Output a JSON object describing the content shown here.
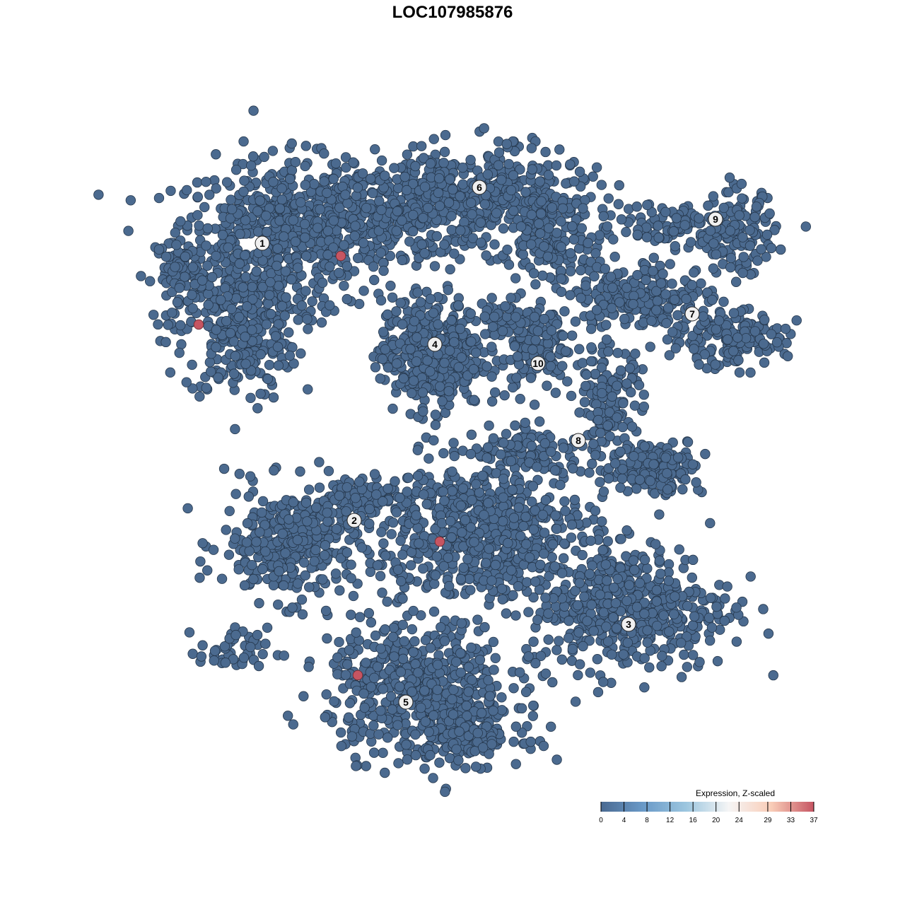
{
  "chart_data": {
    "type": "scatter",
    "title": "LOC107985876",
    "xlabel": "",
    "ylabel": "",
    "grid": false,
    "point_color": "#4b6a8f",
    "point_outline": "#26384d",
    "clusters": [
      {
        "label": "1",
        "x": -26.9,
        "y": 29.6,
        "blobs": [
          {
            "x": -25,
            "y": 30,
            "sx": 9,
            "sy": 7,
            "n": 520
          },
          {
            "x": -30,
            "y": 17,
            "sx": 5,
            "sy": 6,
            "n": 260
          },
          {
            "x": -12,
            "y": 33,
            "sx": 8,
            "sy": 4.5,
            "n": 300
          },
          {
            "x": -38,
            "y": 25,
            "sx": 2.5,
            "sy": 4,
            "n": 80
          }
        ]
      },
      {
        "label": "2",
        "x": -13.9,
        "y": -9.6,
        "blobs": [
          {
            "x": -23,
            "y": -13,
            "sx": 6,
            "sy": 5,
            "n": 300
          },
          {
            "x": -15,
            "y": -7,
            "sx": 4,
            "sy": 2,
            "n": 80
          },
          {
            "x": -31,
            "y": -28,
            "sx": 3,
            "sy": 2,
            "n": 45
          }
        ]
      },
      {
        "label": "3",
        "x": 24.9,
        "y": -24.3,
        "blobs": [
          {
            "x": 25,
            "y": -22,
            "sx": 9,
            "sy": 5.5,
            "n": 480
          }
        ]
      },
      {
        "label": "4",
        "x": -2.5,
        "y": 15.3,
        "blobs": [
          {
            "x": -3,
            "y": 14,
            "sx": 4.5,
            "sy": 5,
            "n": 420
          }
        ]
      },
      {
        "label": "5",
        "x": -6.6,
        "y": -35.3,
        "blobs": [
          {
            "x": -5,
            "y": -33,
            "sx": 8,
            "sy": 6,
            "n": 520
          },
          {
            "x": 2,
            "y": -40,
            "sx": 5,
            "sy": 2.5,
            "n": 160
          }
        ]
      },
      {
        "label": "6",
        "x": 3.8,
        "y": 37.5,
        "blobs": [
          {
            "x": 3,
            "y": 36,
            "sx": 10,
            "sy": 4.5,
            "n": 460
          },
          {
            "x": 15,
            "y": 30,
            "sx": 5,
            "sy": 4,
            "n": 160
          }
        ]
      },
      {
        "label": "7",
        "x": 33.9,
        "y": 19.6,
        "blobs": [
          {
            "x": 27,
            "y": 22,
            "sx": 6,
            "sy": 3,
            "n": 210
          },
          {
            "x": 39,
            "y": 16,
            "sx": 5,
            "sy": 2.5,
            "n": 160
          }
        ]
      },
      {
        "label": "8",
        "x": 17.8,
        "y": 1.7,
        "blobs": [
          {
            "x": 22,
            "y": 7,
            "sx": 3,
            "sy": 5,
            "n": 150
          },
          {
            "x": 29,
            "y": -2,
            "sx": 4,
            "sy": 2.5,
            "n": 160
          },
          {
            "x": 11,
            "y": 0,
            "sx": 5,
            "sy": 2,
            "n": 110
          }
        ]
      },
      {
        "label": "9",
        "x": 37.2,
        "y": 33.0,
        "blobs": [
          {
            "x": 31,
            "y": 32,
            "sx": 4,
            "sy": 2,
            "n": 80
          },
          {
            "x": 40,
            "y": 31,
            "sx": 3.5,
            "sy": 3.5,
            "n": 150
          }
        ]
      },
      {
        "label": "10",
        "x": 12.1,
        "y": 12.6,
        "blobs": [
          {
            "x": 12,
            "y": 14,
            "sx": 3.5,
            "sy": 4,
            "n": 120
          },
          {
            "x": 8,
            "y": 19,
            "sx": 4,
            "sy": 1.5,
            "n": 60
          }
        ]
      },
      {
        "label": "",
        "x": 5,
        "y": -10,
        "blobs": [
          {
            "x": 4,
            "y": -11,
            "sx": 10,
            "sy": 6,
            "n": 650
          }
        ]
      }
    ],
    "expressing_points": [
      {
        "x": -15.8,
        "y": 27.8,
        "value": 37
      },
      {
        "x": -35.9,
        "y": 18.1,
        "value": 37
      },
      {
        "x": -1.8,
        "y": -12.6,
        "value": 37
      },
      {
        "x": -13.4,
        "y": -31.5,
        "value": 37
      }
    ],
    "colorbar": {
      "title": "Expression, Z-scaled",
      "ticks": [
        "0",
        "4",
        "8",
        "12",
        "16",
        "20",
        "24",
        "29",
        "33",
        "37"
      ],
      "range": [
        0,
        37
      ],
      "colors": [
        "#4a6a92",
        "#6a9ac8",
        "#9cc6df",
        "#f5f5f5",
        "#f9cdb8",
        "#c65562"
      ],
      "placement": "bottom-right"
    }
  }
}
